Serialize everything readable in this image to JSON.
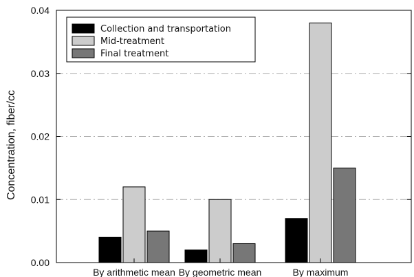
{
  "chart_data": {
    "type": "bar",
    "title": "",
    "xlabel": "",
    "ylabel": "Concentration, fiber/cc",
    "ylim": [
      0,
      0.04
    ],
    "yticks": [
      0.0,
      0.01,
      0.02,
      0.03,
      0.04
    ],
    "ytick_labels": [
      "0.00",
      "0.01",
      "0.02",
      "0.03",
      "0.04"
    ],
    "grid": "horizontal dash-dot at major y ticks",
    "legend_position": "top-left",
    "categories": [
      "By arithmetic mean",
      "By geometric mean",
      "By maximum"
    ],
    "series": [
      {
        "name": "Collection and transportation",
        "color": "#000000",
        "values": [
          0.004,
          0.002,
          0.007
        ]
      },
      {
        "name": "Mid-treatment",
        "color": "#cccccc",
        "values": [
          0.012,
          0.01,
          0.038
        ]
      },
      {
        "name": "Final treatment",
        "color": "#777777",
        "values": [
          0.005,
          0.003,
          0.015
        ]
      }
    ]
  }
}
